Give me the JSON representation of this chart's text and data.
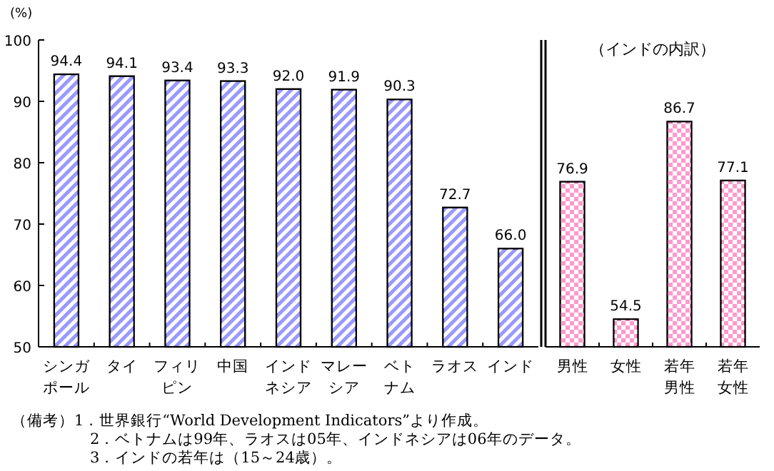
{
  "chart_data": [
    {
      "type": "bar",
      "ylabel": "(%)",
      "categories": [
        "シンガポール",
        "タイ",
        "フィリピン",
        "中国",
        "インドネシア",
        "マレーシア",
        "ベトナム",
        "ラオス",
        "インド"
      ],
      "values": [
        94.4,
        94.1,
        93.4,
        93.3,
        92.0,
        91.9,
        90.3,
        72.7,
        66.0
      ],
      "value_labels": [
        "94.4",
        "94.1",
        "93.4",
        "93.3",
        "92.0",
        "91.9",
        "90.3",
        "72.7",
        "66.0"
      ],
      "color": "#9999ff",
      "ylim": [
        50,
        100
      ],
      "yticks": [
        50,
        60,
        70,
        80,
        90,
        100
      ],
      "annotations": [
        "（備考）1．世界銀行“World Development Indicators”より作成。",
        "2．ベトナムは99年、ラオスは05年、インドネシアは06年のデータ。",
        "3．インドの若年は（15～24歳）。"
      ]
    },
    {
      "type": "bar",
      "title": "（インドの内訳）",
      "categories": [
        "男性",
        "女性",
        "若年男性",
        "若年女性"
      ],
      "values": [
        76.9,
        54.5,
        86.7,
        77.1
      ],
      "value_labels": [
        "76.9",
        "54.5",
        "86.7",
        "77.1"
      ],
      "color": "#ff99cc",
      "ylim": [
        50,
        100
      ],
      "tick_labels": "x"
    }
  ]
}
